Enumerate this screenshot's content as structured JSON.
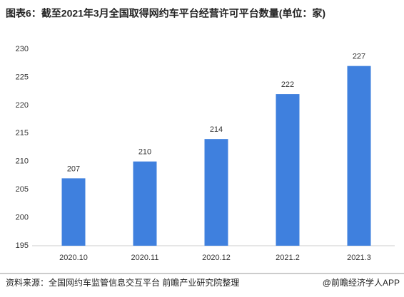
{
  "chart_data": {
    "type": "bar",
    "title": "图表6：截至2021年3月全国取得网约车平台经营许可平台数量(单位：家)",
    "categories": [
      "2020.10",
      "2020.11",
      "2020.12",
      "2021.2",
      "2021.3"
    ],
    "values": [
      207,
      210,
      214,
      222,
      227
    ],
    "color": "#3f80de",
    "ylim": [
      195,
      230
    ],
    "yticks": [
      195,
      200,
      205,
      210,
      215,
      220,
      225,
      230
    ],
    "grid": false,
    "source": "资料来源：全国网约车监管信息交互平台 前瞻产业研究院整理",
    "credit": "@前瞻经济学人APP"
  }
}
